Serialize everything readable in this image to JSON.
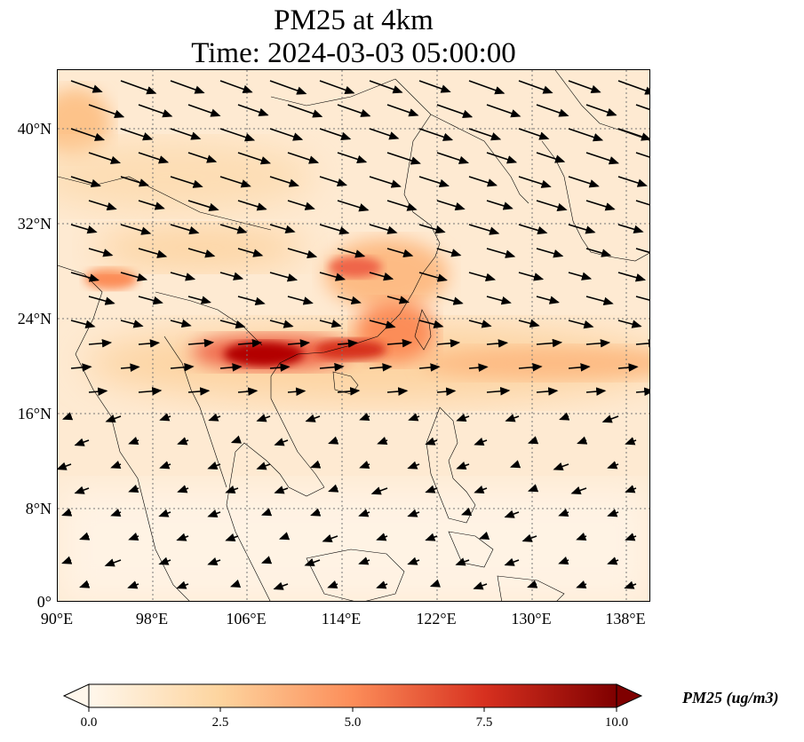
{
  "title": {
    "line1": "PM25 at 4km",
    "line2": "Time: 2024-03-03 05:00:00"
  },
  "map": {
    "lon_range": [
      90,
      140
    ],
    "lat_range": [
      0,
      40
    ],
    "lat_labels": [
      "40°N",
      "32°N",
      "24°N",
      "16°N",
      "8°N",
      "0°"
    ],
    "lon_labels": [
      "90°E",
      "98°E",
      "106°E",
      "114°E",
      "122°E",
      "130°E",
      "138°E"
    ],
    "gridlines": true,
    "field": "PM25",
    "wind_vectors": true
  },
  "colorbar": {
    "label": "PM25 (ug/m3)",
    "ticks": [
      "0.0",
      "2.5",
      "5.0",
      "7.5",
      "10.0"
    ],
    "range": [
      0,
      10
    ],
    "colormap": "OrRd",
    "colors": [
      "#fff7ec",
      "#fdd49e",
      "#fc8d59",
      "#d7301f",
      "#7f0000"
    ]
  }
}
